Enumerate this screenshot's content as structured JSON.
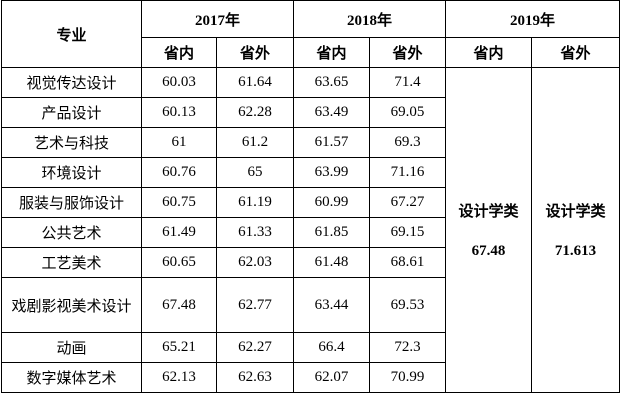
{
  "table": {
    "header": {
      "major": "专业",
      "years": [
        "2017年",
        "2018年",
        "2019年"
      ],
      "sub": [
        "省内",
        "省外",
        "省内",
        "省外",
        "省内",
        "省外"
      ]
    },
    "rows": [
      [
        "视觉传达设计",
        60.03,
        61.64,
        63.65,
        71.4
      ],
      [
        "产品设计",
        60.13,
        62.28,
        63.49,
        69.05
      ],
      [
        "艺术与科技",
        61,
        61.2,
        61.57,
        69.3
      ],
      [
        "环境设计",
        60.76,
        65,
        63.99,
        71.16
      ],
      [
        "服装与服饰设计",
        60.75,
        61.19,
        60.99,
        67.27
      ],
      [
        "公共艺术",
        61.49,
        61.33,
        61.85,
        69.15
      ],
      [
        "工艺美术",
        60.65,
        62.03,
        61.48,
        68.61
      ],
      [
        "戏剧影视美术设计",
        67.48,
        62.77,
        63.44,
        69.53
      ],
      [
        "动画",
        65.21,
        62.27,
        66.4,
        72.3
      ],
      [
        "数字媒体艺术",
        62.13,
        62.63,
        62.07,
        70.99
      ]
    ],
    "merged": [
      {
        "label": "设计学类",
        "value": 67.48
      },
      {
        "label": "设计学类",
        "value": 71.613
      }
    ]
  }
}
